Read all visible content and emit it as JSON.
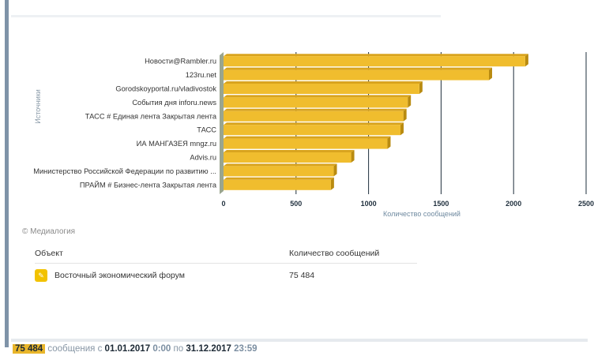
{
  "chart_data": {
    "type": "bar",
    "orientation": "horizontal",
    "categories": [
      "Новости@Rambler.ru",
      "123ru.net",
      "Gorodskoyportal.ru/vladivostok",
      "События дня inforu.news",
      "ТАСС # Единая лента Закрытая лента",
      "ТАСС",
      "ИА МАНГАЗЕЯ mngz.ru",
      "Advis.ru",
      "Министерство Российской Федерации по развитию ...",
      "ПРАЙМ # Бизнес-лента Закрытая лента"
    ],
    "values": [
      2080,
      1830,
      1350,
      1270,
      1240,
      1220,
      1130,
      880,
      760,
      740
    ],
    "xlim": [
      0,
      2500
    ],
    "xticks": [
      "0",
      "500",
      "1000",
      "1500",
      "2000",
      "2500"
    ],
    "xlabel": "Количество сообщений",
    "ylabel": "Источники",
    "grid": true,
    "bar_color": "#f0bd2e"
  },
  "credit": "© Медиалогия",
  "table": {
    "col_object": "Объект",
    "col_count": "Количество сообщений",
    "rows": [
      {
        "object": "Восточный экономический форум",
        "count": "75 484",
        "icon": "pencil-icon"
      }
    ]
  },
  "summary": {
    "count": "75 484",
    "text": "сообщения",
    "from_prefix": "с",
    "from_date": "01.01.2017",
    "from_time": "0:00",
    "to_prefix": "по",
    "to_date": "31.12.2017",
    "to_time": "23:59"
  }
}
